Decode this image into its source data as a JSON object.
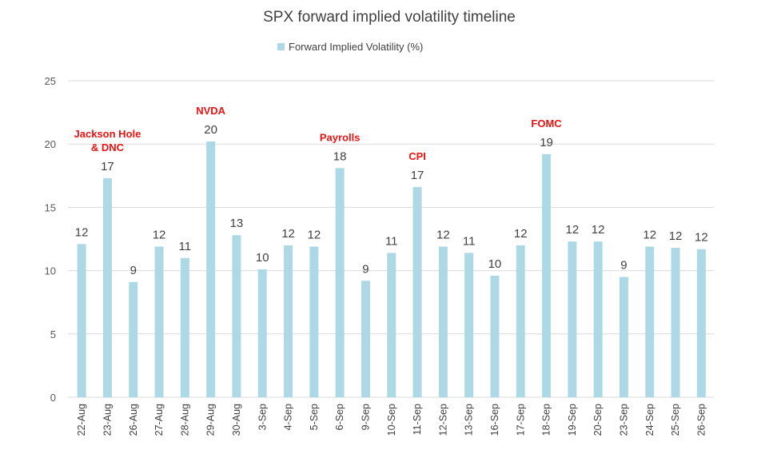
{
  "chart_data": {
    "type": "bar",
    "title": "SPX forward implied volatility timeline",
    "legend": "top",
    "series": [
      {
        "name": "Forward Implied Volatility (%)",
        "color": "#add8e6",
        "values": [
          12.1,
          17.3,
          9.1,
          11.9,
          11.0,
          20.2,
          12.8,
          10.1,
          12.0,
          11.9,
          18.1,
          9.2,
          11.4,
          16.6,
          11.9,
          11.4,
          9.6,
          12.0,
          19.2,
          12.3,
          12.3,
          9.5,
          11.9,
          11.8,
          11.7
        ]
      }
    ],
    "categories": [
      "22-Aug",
      "23-Aug",
      "26-Aug",
      "27-Aug",
      "28-Aug",
      "29-Aug",
      "30-Aug",
      "3-Sep",
      "4-Sep",
      "5-Sep",
      "6-Sep",
      "9-Sep",
      "10-Sep",
      "11-Sep",
      "12-Sep",
      "13-Sep",
      "16-Sep",
      "17-Sep",
      "18-Sep",
      "19-Sep",
      "20-Sep",
      "23-Sep",
      "24-Sep",
      "25-Sep",
      "26-Sep"
    ],
    "data_labels": [
      "12",
      "17",
      "9",
      "12",
      "11",
      "20",
      "13",
      "10",
      "12",
      "12",
      "18",
      "9",
      "11",
      "17",
      "12",
      "11",
      "10",
      "12",
      "19",
      "12",
      "12",
      "9",
      "12",
      "12",
      "12"
    ],
    "y_ticks": [
      "0",
      "5",
      "10",
      "15",
      "20",
      "25"
    ],
    "ylim": [
      0,
      25
    ],
    "xlabel": "",
    "ylabel": "",
    "grid": true,
    "annotations": [
      {
        "category_index": 1,
        "lines": [
          "Jackson Hole",
          "& DNC"
        ]
      },
      {
        "category_index": 5,
        "lines": [
          "NVDA"
        ]
      },
      {
        "category_index": 10,
        "lines": [
          "Payrolls"
        ]
      },
      {
        "category_index": 13,
        "lines": [
          "CPI"
        ]
      },
      {
        "category_index": 18,
        "lines": [
          "FOMC"
        ]
      }
    ],
    "annotation_color": "#ee1111"
  }
}
